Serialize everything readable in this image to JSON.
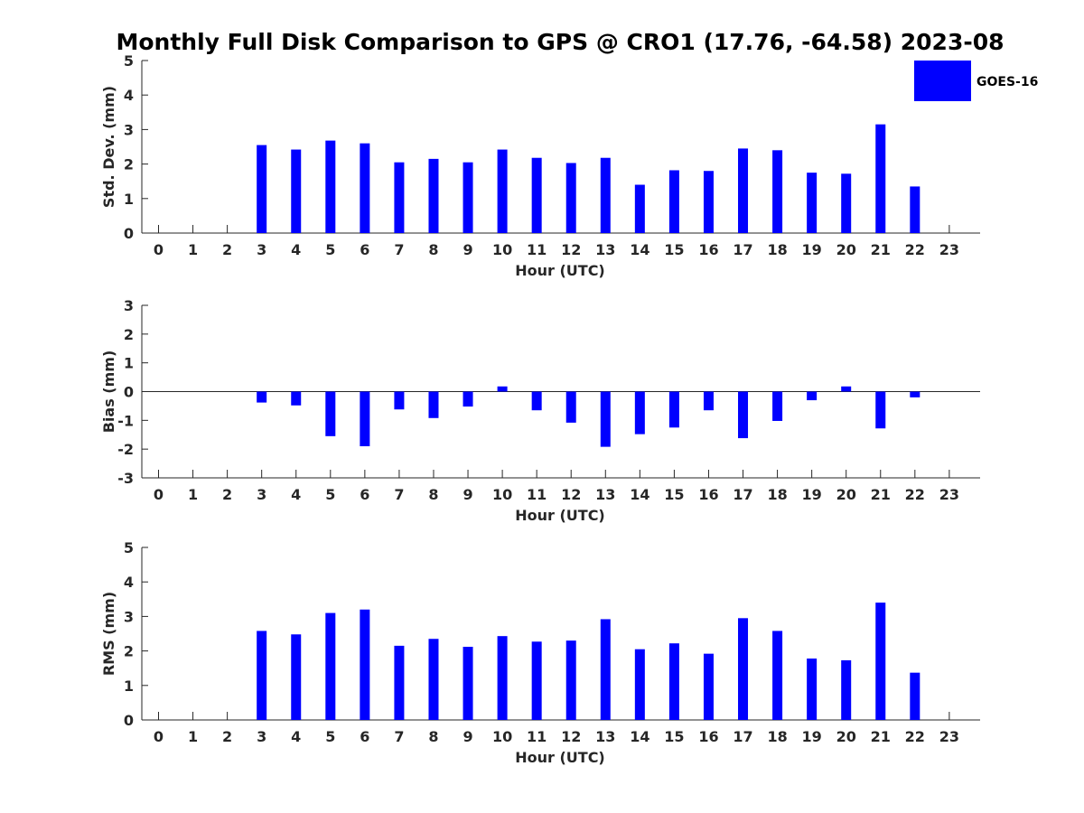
{
  "title": "Monthly Full Disk Comparison to GPS @ CRO1 (17.76, -64.58) 2023-08",
  "legend": {
    "label": "GOES-16",
    "color": "#0000ff",
    "placement": "top-right"
  },
  "chart_data": [
    {
      "type": "bar",
      "ylabel": "Std. Dev. (mm)",
      "xlabel": "Hour (UTC)",
      "ylim": [
        0,
        5
      ],
      "yticks": [
        "0",
        "1",
        "2",
        "3",
        "4",
        "5"
      ],
      "xticks": [
        "0",
        "1",
        "2",
        "3",
        "4",
        "5",
        "6",
        "7",
        "8",
        "9",
        "10",
        "11",
        "12",
        "13",
        "14",
        "15",
        "16",
        "17",
        "18",
        "19",
        "20",
        "21",
        "22",
        "23"
      ],
      "categories": [
        0,
        1,
        2,
        3,
        4,
        5,
        6,
        7,
        8,
        9,
        10,
        11,
        12,
        13,
        14,
        15,
        16,
        17,
        18,
        19,
        20,
        21,
        22,
        23
      ],
      "series": [
        {
          "name": "GOES-16",
          "color": "#0000ff",
          "values": [
            null,
            null,
            null,
            2.55,
            2.42,
            2.68,
            2.6,
            2.05,
            2.15,
            2.05,
            2.42,
            2.18,
            2.03,
            2.18,
            1.4,
            1.82,
            1.8,
            2.45,
            2.4,
            1.75,
            1.72,
            3.15,
            1.35,
            null
          ]
        }
      ],
      "grid": false
    },
    {
      "type": "bar",
      "ylabel": "Bias (mm)",
      "xlabel": "Hour (UTC)",
      "ylim": [
        -3,
        3
      ],
      "yticks": [
        "-3",
        "-2",
        "-1",
        "0",
        "1",
        "2",
        "3"
      ],
      "xticks": [
        "0",
        "1",
        "2",
        "3",
        "4",
        "5",
        "6",
        "7",
        "8",
        "9",
        "10",
        "11",
        "12",
        "13",
        "14",
        "15",
        "16",
        "17",
        "18",
        "19",
        "20",
        "21",
        "22",
        "23"
      ],
      "categories": [
        0,
        1,
        2,
        3,
        4,
        5,
        6,
        7,
        8,
        9,
        10,
        11,
        12,
        13,
        14,
        15,
        16,
        17,
        18,
        19,
        20,
        21,
        22,
        23
      ],
      "series": [
        {
          "name": "GOES-16",
          "color": "#0000ff",
          "values": [
            null,
            null,
            null,
            -0.38,
            -0.48,
            -1.55,
            -1.9,
            -0.62,
            -0.92,
            -0.52,
            0.18,
            -0.65,
            -1.08,
            -1.92,
            -1.48,
            -1.25,
            -0.65,
            -1.62,
            -1.02,
            -0.3,
            0.18,
            -1.28,
            -0.2,
            null
          ]
        }
      ],
      "grid": false,
      "zero_line": true
    },
    {
      "type": "bar",
      "ylabel": "RMS (mm)",
      "xlabel": "Hour (UTC)",
      "ylim": [
        0,
        5
      ],
      "yticks": [
        "0",
        "1",
        "2",
        "3",
        "4",
        "5"
      ],
      "xticks": [
        "0",
        "1",
        "2",
        "3",
        "4",
        "5",
        "6",
        "7",
        "8",
        "9",
        "10",
        "11",
        "12",
        "13",
        "14",
        "15",
        "16",
        "17",
        "18",
        "19",
        "20",
        "21",
        "22",
        "23"
      ],
      "categories": [
        0,
        1,
        2,
        3,
        4,
        5,
        6,
        7,
        8,
        9,
        10,
        11,
        12,
        13,
        14,
        15,
        16,
        17,
        18,
        19,
        20,
        21,
        22,
        23
      ],
      "series": [
        {
          "name": "GOES-16",
          "color": "#0000ff",
          "values": [
            null,
            null,
            null,
            2.58,
            2.48,
            3.1,
            3.2,
            2.15,
            2.35,
            2.12,
            2.43,
            2.27,
            2.3,
            2.92,
            2.05,
            2.22,
            1.92,
            2.95,
            2.58,
            1.78,
            1.73,
            3.4,
            1.37,
            null
          ]
        }
      ],
      "grid": false
    }
  ]
}
